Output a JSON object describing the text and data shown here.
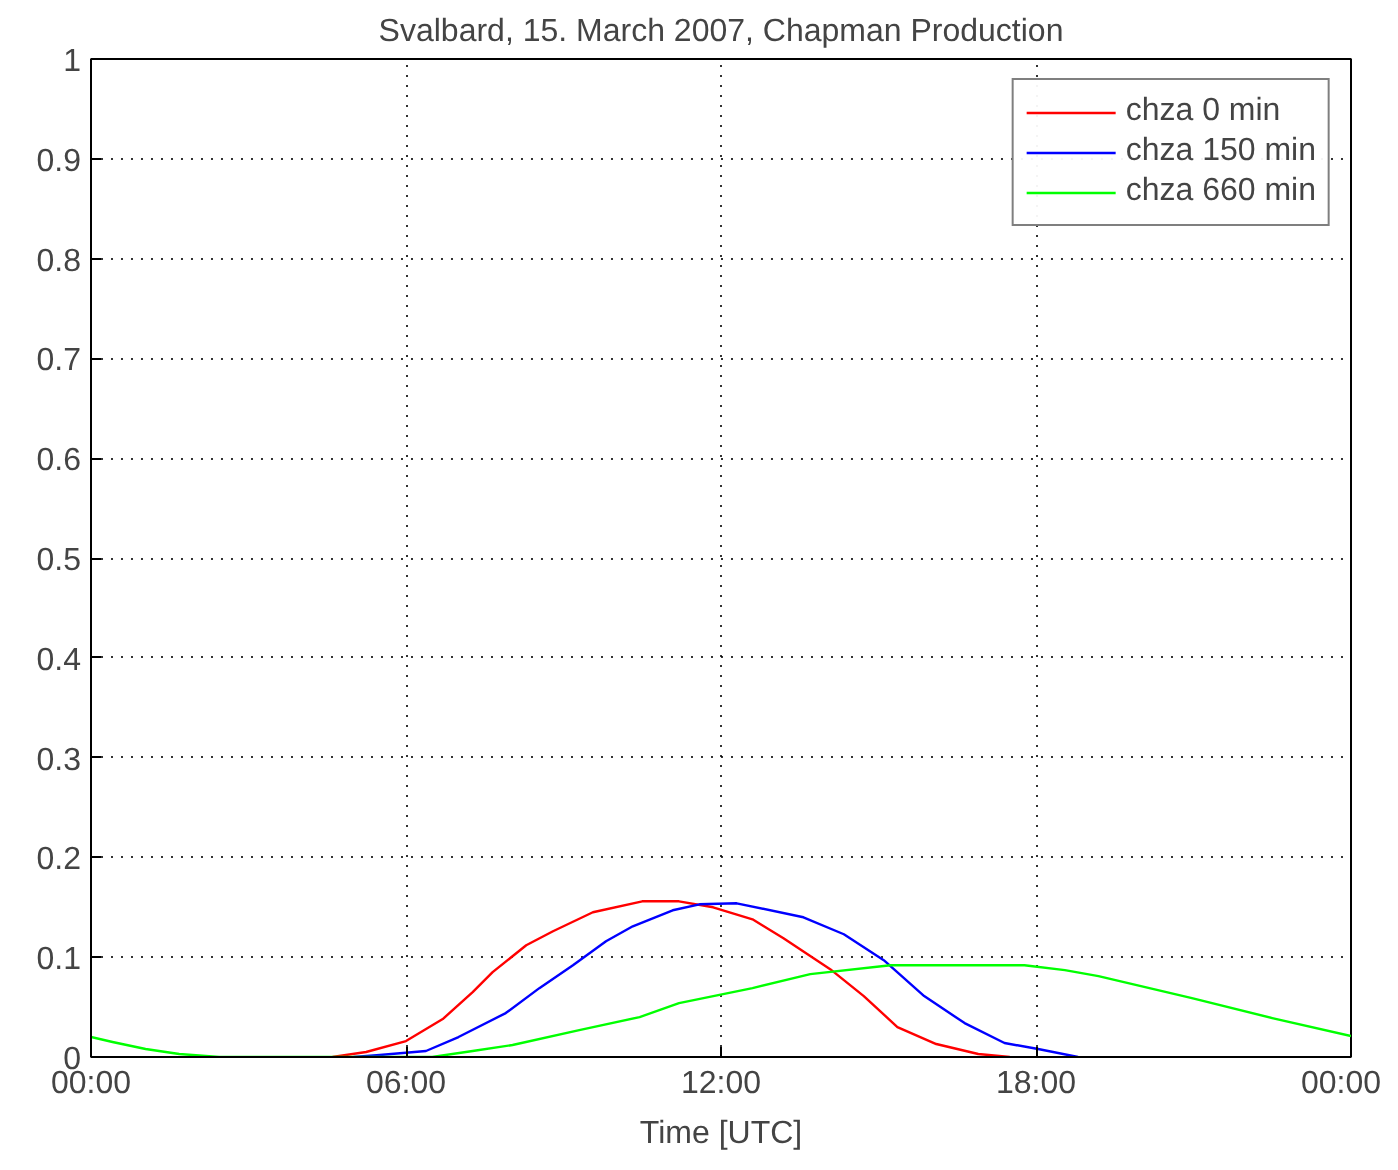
{
  "chart_data": {
    "type": "line",
    "title": "Svalbard, 15. March 2007, Chapman Production",
    "xlabel": "Time [UTC]",
    "xlim": [
      0,
      24
    ],
    "xticks": [
      {
        "value": 0,
        "label": "00:00"
      },
      {
        "value": 6,
        "label": "06:00"
      },
      {
        "value": 12,
        "label": "12:00"
      },
      {
        "value": 18,
        "label": "18:00"
      },
      {
        "value": 24,
        "label": "00:00"
      }
    ],
    "ylim": [
      0,
      1
    ],
    "yticks": [
      0,
      0.1,
      0.2,
      0.3,
      0.4,
      0.5,
      0.6,
      0.7,
      0.8,
      0.9,
      1
    ],
    "grid": true,
    "legend": "top right",
    "series": [
      {
        "name": "chza 0 min",
        "color": "#ff0000",
        "x": [
          4.6,
          5.24,
          6.0,
          6.7,
          7.27,
          7.65,
          8.29,
          8.8,
          9.56,
          10.5,
          11.2,
          11.85,
          12.6,
          13.19,
          14.08,
          14.72,
          15.36,
          16.1,
          16.9,
          17.5
        ],
        "values": [
          0,
          0.005,
          0.016,
          0.038,
          0.065,
          0.085,
          0.112,
          0.126,
          0.145,
          0.156,
          0.156,
          0.15,
          0.138,
          0.119,
          0.088,
          0.061,
          0.03,
          0.013,
          0.003,
          0
        ]
      },
      {
        "name": "chza 150 min",
        "color": "#0000ff",
        "x": [
          5.0,
          5.5,
          6.38,
          7.0,
          7.9,
          8.54,
          9.18,
          9.81,
          10.32,
          11.08,
          11.59,
          12.3,
          13.57,
          14.34,
          15.1,
          15.87,
          16.64,
          17.4,
          18.04,
          18.8
        ],
        "values": [
          0,
          0.002,
          0.006,
          0.02,
          0.044,
          0.069,
          0.092,
          0.116,
          0.131,
          0.147,
          0.153,
          0.154,
          0.14,
          0.123,
          0.097,
          0.061,
          0.034,
          0.014,
          0.008,
          0
        ]
      },
      {
        "name": "chza 660 min",
        "color": "#00ff00",
        "x": [
          0,
          0.41,
          1.04,
          1.68,
          2.44,
          6.5,
          7.27,
          8.03,
          9.3,
          10.45,
          11.2,
          12.6,
          13.7,
          15.23,
          17.78,
          18.55,
          19.19,
          20.97,
          22.5,
          24
        ],
        "values": [
          0.02,
          0.015,
          0.008,
          0.003,
          0,
          0,
          0.006,
          0.012,
          0.027,
          0.04,
          0.054,
          0.069,
          0.083,
          0.092,
          0.092,
          0.087,
          0.081,
          0.059,
          0.039,
          0.021
        ]
      }
    ]
  }
}
